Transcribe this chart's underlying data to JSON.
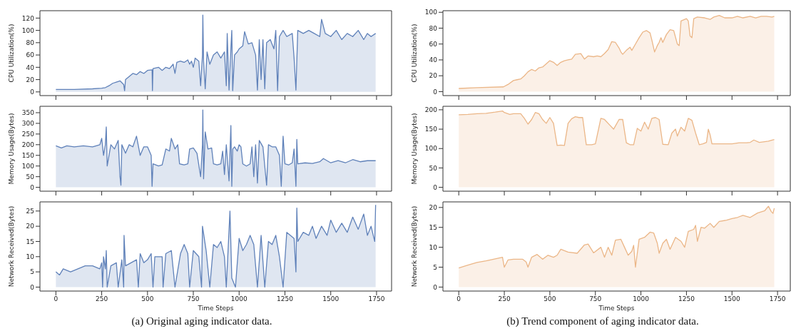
{
  "chart_data": [
    {
      "type": "area",
      "ylabel": "CPU Utilization(%)",
      "xlim": [
        -87,
        1832
      ],
      "xticks": [
        0,
        250,
        500,
        750,
        1000,
        1250,
        1500,
        1750
      ],
      "ylim": [
        -6,
        132
      ],
      "yticks": [
        0,
        20,
        40,
        60,
        80,
        100,
        120
      ],
      "tick_labels": "y",
      "series": [
        {
          "color": "#5f81b9",
          "x": [
            0,
            100,
            200,
            250,
            270,
            290,
            310,
            330,
            350,
            370,
            375,
            380,
            400,
            420,
            440,
            460,
            480,
            500,
            525,
            527,
            530,
            560,
            580,
            600,
            620,
            640,
            650,
            660,
            680,
            700,
            720,
            730,
            740,
            750,
            760,
            780,
            790,
            800,
            802,
            806,
            815,
            825,
            840,
            860,
            880,
            900,
            920,
            930,
            935,
            945,
            955,
            960,
            965,
            975,
            990,
            1000,
            1020,
            1030,
            1050,
            1070,
            1090,
            1100,
            1110,
            1120,
            1130,
            1140,
            1150,
            1170,
            1190,
            1200,
            1210,
            1220,
            1240,
            1260,
            1290,
            1300,
            1310,
            1320,
            1350,
            1380,
            1410,
            1440,
            1450,
            1470,
            1500,
            1530,
            1560,
            1590,
            1620,
            1650,
            1680,
            1700,
            1720,
            1745
          ],
          "values": [
            4,
            4,
            5,
            6,
            7,
            10,
            14,
            16,
            18,
            12,
            2,
            20,
            25,
            30,
            28,
            33,
            30,
            35,
            36,
            2,
            38,
            40,
            35,
            40,
            38,
            45,
            30,
            48,
            50,
            48,
            52,
            45,
            50,
            40,
            55,
            50,
            10,
            60,
            125,
            50,
            5,
            65,
            45,
            60,
            65,
            55,
            65,
            10,
            95,
            3,
            70,
            100,
            2,
            60,
            65,
            70,
            75,
            98,
            78,
            80,
            60,
            3,
            85,
            20,
            85,
            5,
            80,
            85,
            70,
            100,
            2,
            90,
            100,
            90,
            95,
            55,
            3,
            100,
            95,
            100,
            95,
            90,
            118,
            95,
            90,
            100,
            85,
            95,
            90,
            100,
            85,
            95,
            90,
            95
          ]
        }
      ]
    },
    {
      "type": "area",
      "ylabel": "CPU Utilization(%)",
      "xlim": [
        -87,
        1820
      ],
      "xticks": [
        0,
        250,
        500,
        750,
        1000,
        1250,
        1500,
        1750
      ],
      "ylim": [
        -5,
        102
      ],
      "yticks": [
        0,
        20,
        40,
        60,
        80,
        100
      ],
      "tick_labels": "y",
      "series": [
        {
          "color": "#ebb687",
          "x": [
            0,
            100,
            245,
            270,
            300,
            320,
            340,
            360,
            380,
            400,
            420,
            440,
            460,
            480,
            500,
            520,
            540,
            560,
            580,
            600,
            620,
            640,
            670,
            690,
            710,
            740,
            760,
            780,
            800,
            820,
            840,
            860,
            880,
            890,
            900,
            920,
            940,
            950,
            970,
            990,
            1010,
            1030,
            1050,
            1060,
            1075,
            1090,
            1100,
            1110,
            1120,
            1140,
            1160,
            1180,
            1200,
            1210,
            1220,
            1250,
            1260,
            1270,
            1280,
            1290,
            1310,
            1350,
            1380,
            1400,
            1430,
            1460,
            1500,
            1530,
            1560,
            1600,
            1630,
            1660,
            1690,
            1720,
            1732
          ],
          "values": [
            4,
            5,
            6,
            9,
            14,
            15,
            16,
            20,
            25,
            28,
            26,
            30,
            31,
            35,
            39,
            37,
            33,
            37,
            39,
            40,
            41,
            47,
            48,
            41,
            45,
            44,
            45,
            44,
            48,
            53,
            63,
            62,
            55,
            50,
            47,
            52,
            56,
            52,
            60,
            68,
            75,
            77,
            74,
            65,
            50,
            58,
            62,
            68,
            62,
            72,
            78,
            77,
            60,
            58,
            89,
            92,
            89,
            70,
            68,
            92,
            94,
            93,
            91,
            94,
            96,
            93,
            93,
            95,
            93,
            95,
            93,
            95,
            95,
            94,
            95
          ]
        }
      ]
    },
    {
      "type": "area",
      "ylabel": "Memory Usage(Bytes)",
      "xlim": [
        -87,
        1832
      ],
      "xticks": [
        0,
        250,
        500,
        750,
        1000,
        1250,
        1500,
        1750
      ],
      "ylim": [
        -18,
        380
      ],
      "yticks": [
        0,
        50,
        100,
        150,
        200,
        250,
        300,
        350
      ],
      "tick_labels": "y",
      "series": [
        {
          "color": "#5f81b9",
          "x": [
            0,
            30,
            60,
            100,
            150,
            200,
            240,
            250,
            260,
            270,
            275,
            280,
            300,
            320,
            340,
            350,
            355,
            360,
            380,
            400,
            420,
            440,
            460,
            480,
            500,
            520,
            525,
            530,
            560,
            580,
            600,
            620,
            630,
            650,
            665,
            675,
            700,
            720,
            730,
            750,
            770,
            790,
            800,
            802,
            806,
            815,
            830,
            850,
            860,
            880,
            900,
            910,
            920,
            930,
            945,
            955,
            960,
            965,
            975,
            990,
            1000,
            1010,
            1020,
            1040,
            1060,
            1070,
            1080,
            1090,
            1100,
            1110,
            1130,
            1150,
            1160,
            1180,
            1200,
            1220,
            1230,
            1240,
            1250,
            1270,
            1290,
            1300,
            1310,
            1315,
            1320,
            1360,
            1400,
            1440,
            1460,
            1500,
            1540,
            1580,
            1620,
            1660,
            1700,
            1745
          ],
          "values": [
            195,
            185,
            195,
            190,
            195,
            190,
            200,
            230,
            150,
            200,
            283,
            100,
            200,
            180,
            220,
            50,
            10,
            200,
            160,
            200,
            190,
            240,
            150,
            190,
            190,
            150,
            5,
            110,
            100,
            105,
            180,
            170,
            230,
            180,
            200,
            110,
            105,
            110,
            180,
            185,
            160,
            50,
            200,
            363,
            40,
            260,
            180,
            185,
            110,
            105,
            110,
            170,
            60,
            200,
            30,
            290,
            5,
            180,
            190,
            170,
            200,
            190,
            110,
            100,
            110,
            190,
            50,
            200,
            20,
            220,
            190,
            10,
            200,
            190,
            190,
            150,
            5,
            240,
            110,
            105,
            115,
            180,
            5,
            225,
            110,
            115,
            112,
            120,
            135,
            115,
            125,
            115,
            130,
            120,
            125,
            125
          ]
        }
      ]
    },
    {
      "type": "area",
      "ylabel": "Memory Usage(Bytes)",
      "xlim": [
        -87,
        1820
      ],
      "xticks": [
        0,
        250,
        500,
        750,
        1000,
        1250,
        1500,
        1750
      ],
      "ylim": [
        -10,
        209
      ],
      "yticks": [
        0,
        50,
        100,
        150,
        200
      ],
      "tick_labels": "y",
      "series": [
        {
          "color": "#ebb687",
          "x": [
            0,
            50,
            100,
            150,
            200,
            240,
            250,
            280,
            300,
            340,
            360,
            380,
            400,
            420,
            440,
            460,
            480,
            500,
            520,
            540,
            560,
            580,
            600,
            620,
            640,
            660,
            680,
            700,
            730,
            750,
            780,
            800,
            830,
            850,
            880,
            900,
            920,
            940,
            960,
            980,
            1000,
            1020,
            1040,
            1060,
            1080,
            1100,
            1120,
            1150,
            1170,
            1190,
            1200,
            1220,
            1240,
            1260,
            1280,
            1300,
            1320,
            1340,
            1360,
            1370,
            1380,
            1390,
            1420,
            1460,
            1500,
            1540,
            1580,
            1600,
            1620,
            1650,
            1700,
            1720,
            1732
          ],
          "values": [
            187,
            188,
            190,
            191,
            194,
            197,
            193,
            188,
            190,
            190,
            178,
            163,
            175,
            193,
            190,
            175,
            165,
            180,
            165,
            108,
            109,
            108,
            165,
            177,
            182,
            180,
            180,
            110,
            110,
            112,
            178,
            175,
            160,
            150,
            175,
            175,
            115,
            110,
            110,
            152,
            145,
            168,
            150,
            178,
            180,
            175,
            111,
            110,
            140,
            150,
            132,
            155,
            145,
            178,
            173,
            140,
            110,
            112,
            116,
            150,
            135,
            112,
            112,
            112,
            112,
            115,
            115,
            116,
            122,
            116,
            119,
            122,
            123
          ]
        }
      ]
    },
    {
      "type": "area",
      "xlabel": "Time Steps",
      "ylabel": "Network Received(Bytes)",
      "xlim": [
        -87,
        1832
      ],
      "xticks": [
        0,
        250,
        500,
        750,
        1000,
        1250,
        1500,
        1750
      ],
      "ylim": [
        -1.3,
        28
      ],
      "yticks": [
        0,
        5,
        10,
        15,
        20,
        25
      ],
      "annotations": [
        "(a) Original aging indicator data."
      ],
      "series": [
        {
          "color": "#5f81b9",
          "x": [
            0,
            20,
            40,
            80,
            120,
            160,
            200,
            240,
            250,
            255,
            260,
            270,
            275,
            280,
            300,
            330,
            340,
            360,
            370,
            372,
            380,
            410,
            440,
            450,
            460,
            480,
            500,
            520,
            530,
            540,
            580,
            585,
            600,
            630,
            650,
            680,
            700,
            720,
            730,
            750,
            780,
            795,
            800,
            820,
            840,
            860,
            880,
            900,
            920,
            930,
            950,
            960,
            980,
            1000,
            1020,
            1040,
            1060,
            1080,
            1100,
            1120,
            1140,
            1160,
            1180,
            1200,
            1220,
            1240,
            1260,
            1300,
            1310,
            1315,
            1320,
            1350,
            1380,
            1400,
            1420,
            1450,
            1480,
            1500,
            1530,
            1560,
            1590,
            1620,
            1650,
            1680,
            1700,
            1720,
            1740,
            1745
          ],
          "values": [
            5,
            4,
            6,
            5,
            6,
            7,
            7,
            6,
            8,
            0,
            10,
            6,
            12,
            0,
            7,
            8,
            0,
            9,
            0,
            17,
            7,
            8,
            9,
            0,
            11,
            8,
            9,
            11,
            0,
            10,
            10,
            0,
            11,
            12,
            0,
            11,
            14,
            11,
            0,
            12,
            10,
            0,
            20,
            12,
            0,
            14,
            13,
            15,
            10,
            0,
            25,
            3,
            0,
            16,
            12,
            14,
            17,
            14,
            0,
            17,
            0,
            15,
            14,
            17,
            10,
            0,
            18,
            16,
            5,
            26,
            15,
            18,
            17,
            20,
            16,
            20,
            17,
            22,
            18,
            21,
            18,
            23,
            19,
            24,
            17,
            20,
            15,
            27
          ]
        }
      ]
    },
    {
      "type": "area",
      "xlabel": "Time Steps",
      "ylabel": "Network Received(Bytes)",
      "xlim": [
        -87,
        1820
      ],
      "xticks": [
        0,
        250,
        500,
        750,
        1000,
        1250,
        1500,
        1750
      ],
      "ylim": [
        -1,
        21.4
      ],
      "yticks": [
        0,
        5,
        10,
        15,
        20
      ],
      "annotations": [
        "(b) Trend component of aging indicator data."
      ],
      "series": [
        {
          "color": "#ebb687",
          "x": [
            0,
            50,
            100,
            150,
            200,
            240,
            250,
            270,
            300,
            350,
            370,
            380,
            400,
            430,
            460,
            490,
            520,
            540,
            560,
            600,
            650,
            690,
            710,
            740,
            780,
            800,
            820,
            840,
            860,
            890,
            910,
            930,
            950,
            960,
            970,
            990,
            1020,
            1050,
            1070,
            1090,
            1100,
            1120,
            1140,
            1160,
            1190,
            1220,
            1240,
            1260,
            1290,
            1300,
            1310,
            1330,
            1350,
            1380,
            1400,
            1430,
            1470,
            1500,
            1530,
            1560,
            1600,
            1640,
            1680,
            1700,
            1715,
            1725,
            1732
          ],
          "values": [
            4.8,
            5.5,
            6.2,
            6.6,
            7.1,
            7.5,
            5,
            6.8,
            7,
            7,
            6.3,
            5,
            7.5,
            8.2,
            7,
            8,
            7.5,
            8,
            9.5,
            8.8,
            8.5,
            10.6,
            10.8,
            8.6,
            10,
            7.5,
            10,
            8,
            11.8,
            12,
            10,
            8,
            9,
            10.5,
            5,
            12,
            12.5,
            13.8,
            13.6,
            11,
            8.5,
            11,
            12,
            9.5,
            12.5,
            11.5,
            10,
            14,
            14.5,
            15.5,
            11.5,
            15,
            14.8,
            16,
            15,
            16.5,
            16.8,
            17.2,
            17.5,
            18,
            17.5,
            18.6,
            19.2,
            20.3,
            19,
            18.5,
            19.8
          ]
        }
      ]
    }
  ]
}
